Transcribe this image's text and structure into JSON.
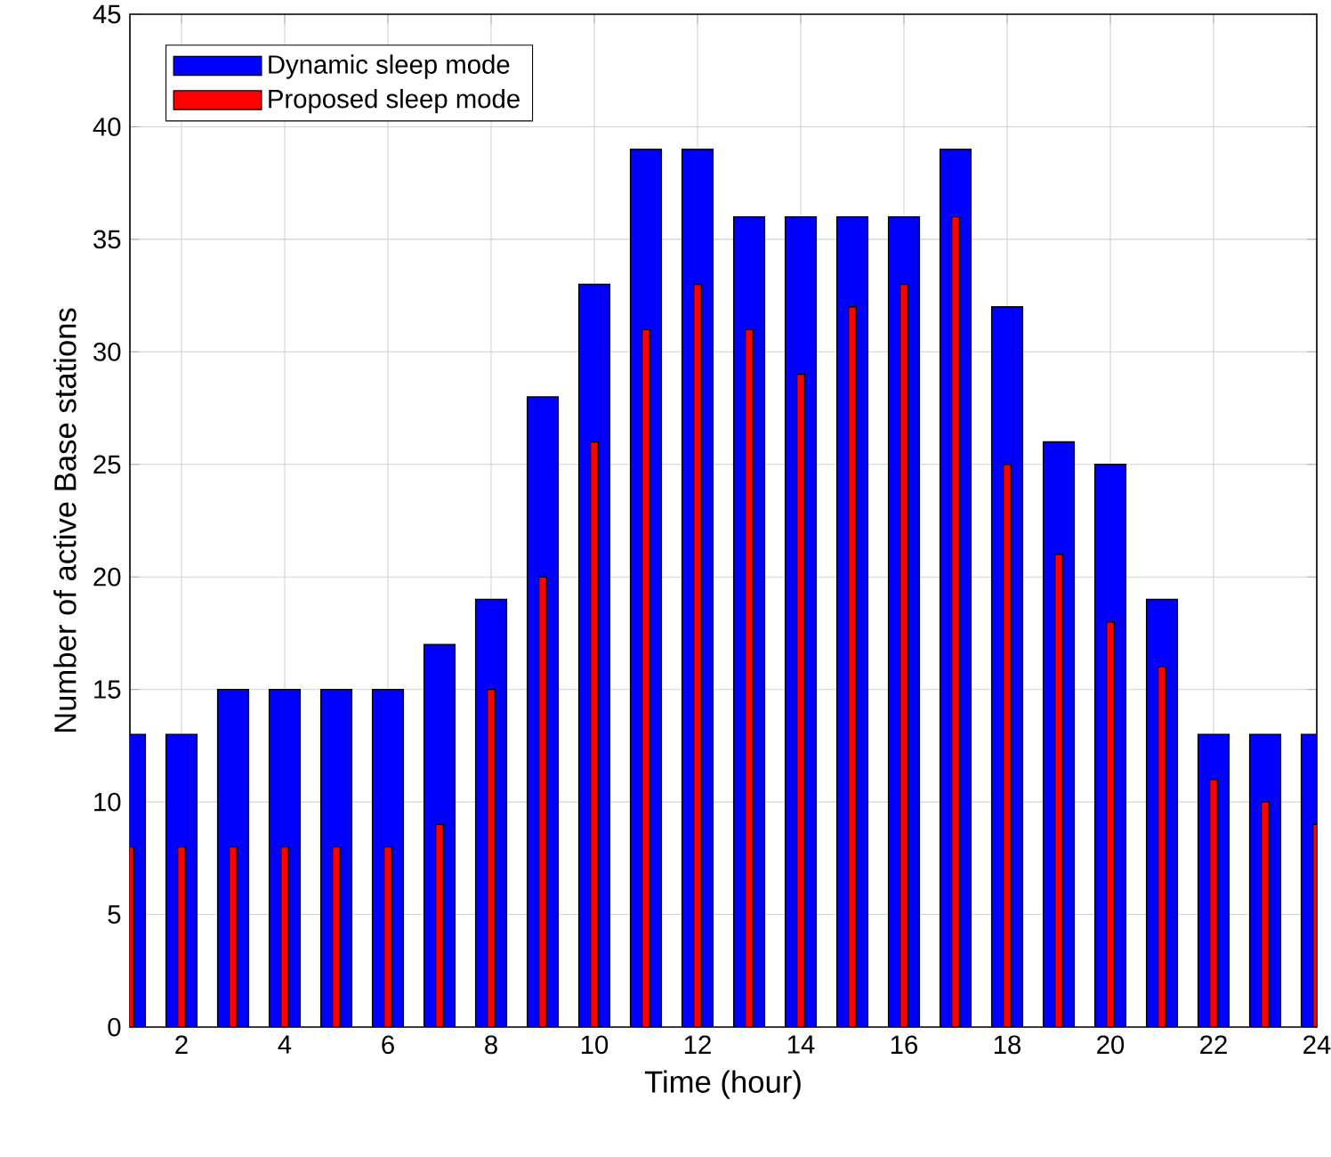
{
  "chart_data": {
    "type": "bar",
    "xlabel": "Time (hour)",
    "ylabel": "Number of active Base stations",
    "x": [
      1,
      2,
      3,
      4,
      5,
      6,
      7,
      8,
      9,
      10,
      11,
      12,
      13,
      14,
      15,
      16,
      17,
      18,
      19,
      20,
      21,
      22,
      23,
      24
    ],
    "series": [
      {
        "name": "Dynamic sleep mode",
        "color": "#0000ff",
        "values": [
          13,
          13,
          15,
          15,
          15,
          15,
          17,
          19,
          28,
          33,
          39,
          39,
          36,
          36,
          36,
          36,
          39,
          32,
          26,
          25,
          19,
          13,
          13,
          13
        ]
      },
      {
        "name": "Proposed sleep mode",
        "color": "#ff0000",
        "values": [
          8,
          8,
          8,
          8,
          8,
          8,
          9,
          15,
          20,
          26,
          31,
          33,
          31,
          29,
          32,
          33,
          36,
          25,
          21,
          18,
          16,
          11,
          10,
          9
        ]
      }
    ],
    "xlim": [
      1,
      24
    ],
    "xticks": [
      2,
      4,
      6,
      8,
      10,
      12,
      14,
      16,
      18,
      20,
      22,
      24
    ],
    "ylim": [
      0,
      45
    ],
    "yticks": [
      0,
      5,
      10,
      15,
      20,
      25,
      30,
      35,
      40,
      45
    ],
    "grid": true,
    "legend": "top left"
  }
}
